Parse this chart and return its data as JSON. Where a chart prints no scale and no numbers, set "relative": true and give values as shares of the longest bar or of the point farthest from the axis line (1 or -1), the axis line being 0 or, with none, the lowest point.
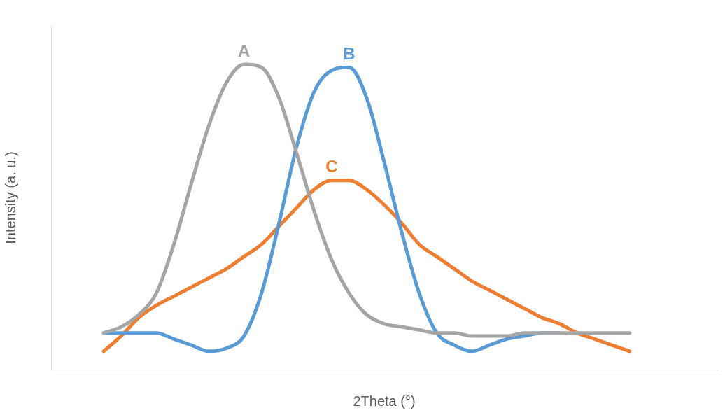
{
  "chart_data": {
    "type": "line",
    "xlabel": "2Theta (°)",
    "ylabel": "Intensity (a. u.)",
    "relative": true,
    "marker": "none",
    "legend": false,
    "grid": false,
    "categories": [
      null,
      null,
      null,
      null,
      null,
      null,
      null,
      null,
      null,
      null,
      null,
      null,
      null,
      null,
      null,
      null,
      null,
      null,
      null,
      null,
      null,
      null,
      null,
      null,
      null,
      null,
      null,
      null,
      null,
      null,
      null,
      null,
      null,
      null,
      null,
      null,
      null,
      null,
      null
    ],
    "series": [
      {
        "name": "A",
        "color": "#a5a5a5",
        "values": [
          null,
          null,
          null,
          0.12,
          0.14,
          0.18,
          0.25,
          0.41,
          0.61,
          0.8,
          0.94,
          1.0,
          0.99,
          0.89,
          0.71,
          0.52,
          0.36,
          0.25,
          0.18,
          0.15,
          0.14,
          0.13,
          0.12,
          0.12,
          0.11,
          0.11,
          0.11,
          0.12,
          0.12,
          0.12,
          0.12,
          0.12,
          0.12,
          0.12,
          null,
          null,
          null,
          null,
          null
        ]
      },
      {
        "name": "B",
        "color": "#5b9bd5",
        "values": [
          null,
          null,
          null,
          0.12,
          0.12,
          0.12,
          0.12,
          0.1,
          0.08,
          0.06,
          0.07,
          0.11,
          0.25,
          0.48,
          0.73,
          0.91,
          0.98,
          0.99,
          0.89,
          0.68,
          0.45,
          0.25,
          0.12,
          0.08,
          0.06,
          0.08,
          0.1,
          0.11,
          0.12,
          0.12,
          null,
          null,
          null,
          null,
          null,
          null,
          null,
          null,
          null
        ]
      },
      {
        "name": "C",
        "color": "#ed7d31",
        "values": [
          null,
          null,
          null,
          0.06,
          0.11,
          0.17,
          0.21,
          0.24,
          0.27,
          0.3,
          0.33,
          0.37,
          0.41,
          0.47,
          0.53,
          0.59,
          0.62,
          0.62,
          0.59,
          0.54,
          0.48,
          0.41,
          0.37,
          0.33,
          0.29,
          0.26,
          0.23,
          0.2,
          0.17,
          0.15,
          0.12,
          0.1,
          0.08,
          0.06,
          null,
          null,
          null,
          null,
          null
        ]
      }
    ]
  }
}
